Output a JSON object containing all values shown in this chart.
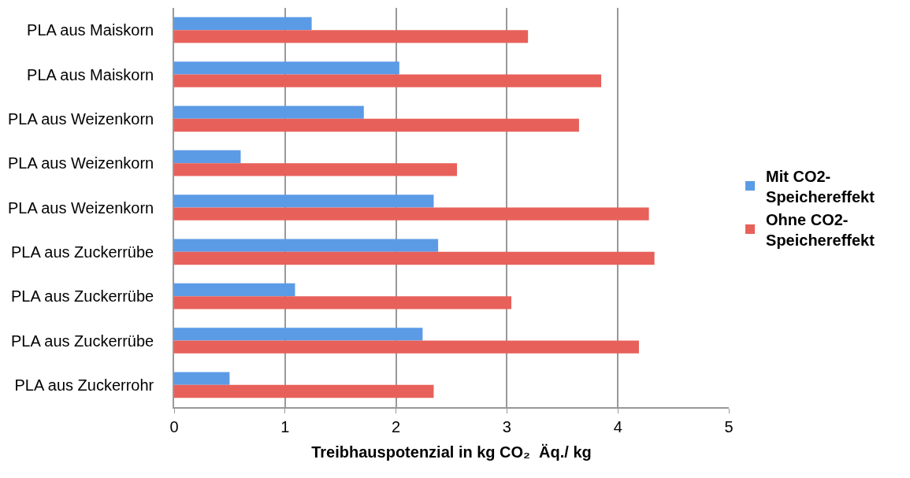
{
  "chart_data": {
    "type": "bar",
    "orientation": "horizontal",
    "categories": [
      "PLA aus Maiskorn",
      "PLA aus Maiskorn",
      "PLA aus Weizenkorn",
      "PLA aus Weizenkorn",
      "PLA aus Weizenkorn",
      "PLA aus Zuckerrübe",
      "PLA aus Zuckerrübe",
      "PLA aus Zuckerrübe",
      "PLA aus Zuckerrohr"
    ],
    "series": [
      {
        "name": "Mit CO2-Speichereffekt",
        "color": "#5b9be6",
        "values": [
          1.24,
          2.03,
          1.71,
          0.6,
          2.34,
          2.38,
          1.09,
          2.24,
          0.5
        ]
      },
      {
        "name": "Ohne CO2-Speichereffekt",
        "color": "#e8605a",
        "values": [
          3.19,
          3.85,
          3.65,
          2.55,
          4.28,
          4.33,
          3.04,
          4.19,
          2.34
        ]
      }
    ],
    "xlabel": "Treibhauspotenzial in kg CO₂  Äq./ kg",
    "xlim": [
      0,
      5
    ],
    "xticks": [
      0,
      1,
      2,
      3,
      4,
      5
    ],
    "grid": "x",
    "legend": "right"
  }
}
